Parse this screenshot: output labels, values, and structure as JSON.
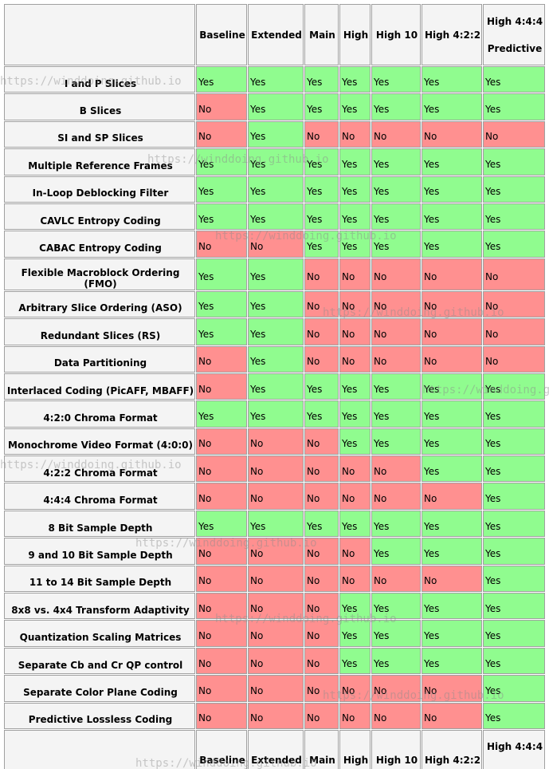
{
  "table": {
    "columns": [
      "Baseline",
      "Extended",
      "Main",
      "High",
      "High 10",
      "High 4:2:2",
      "High 4:4:4 Predictive"
    ],
    "colors": {
      "Yes": "#90fc8f",
      "No": "#ff9090"
    },
    "rows": [
      {
        "feature": "I and P Slices",
        "values": [
          "Yes",
          "Yes",
          "Yes",
          "Yes",
          "Yes",
          "Yes",
          "Yes"
        ]
      },
      {
        "feature": "B Slices",
        "values": [
          "No",
          "Yes",
          "Yes",
          "Yes",
          "Yes",
          "Yes",
          "Yes"
        ]
      },
      {
        "feature": "SI and SP Slices",
        "values": [
          "No",
          "Yes",
          "No",
          "No",
          "No",
          "No",
          "No"
        ]
      },
      {
        "feature": "Multiple Reference Frames",
        "values": [
          "Yes",
          "Yes",
          "Yes",
          "Yes",
          "Yes",
          "Yes",
          "Yes"
        ]
      },
      {
        "feature": "In-Loop Deblocking Filter",
        "values": [
          "Yes",
          "Yes",
          "Yes",
          "Yes",
          "Yes",
          "Yes",
          "Yes"
        ]
      },
      {
        "feature": "CAVLC Entropy Coding",
        "values": [
          "Yes",
          "Yes",
          "Yes",
          "Yes",
          "Yes",
          "Yes",
          "Yes"
        ]
      },
      {
        "feature": "CABAC Entropy Coding",
        "values": [
          "No",
          "No",
          "Yes",
          "Yes",
          "Yes",
          "Yes",
          "Yes"
        ]
      },
      {
        "feature": "Flexible Macroblock Ordering (FMO)",
        "values": [
          "Yes",
          "Yes",
          "No",
          "No",
          "No",
          "No",
          "No"
        ]
      },
      {
        "feature": "Arbitrary Slice Ordering (ASO)",
        "values": [
          "Yes",
          "Yes",
          "No",
          "No",
          "No",
          "No",
          "No"
        ]
      },
      {
        "feature": "Redundant Slices (RS)",
        "values": [
          "Yes",
          "Yes",
          "No",
          "No",
          "No",
          "No",
          "No"
        ]
      },
      {
        "feature": "Data Partitioning",
        "values": [
          "No",
          "Yes",
          "No",
          "No",
          "No",
          "No",
          "No"
        ]
      },
      {
        "feature": "Interlaced Coding (PicAFF, MBAFF)",
        "values": [
          "No",
          "Yes",
          "Yes",
          "Yes",
          "Yes",
          "Yes",
          "Yes"
        ]
      },
      {
        "feature": "4:2:0 Chroma Format",
        "values": [
          "Yes",
          "Yes",
          "Yes",
          "Yes",
          "Yes",
          "Yes",
          "Yes"
        ]
      },
      {
        "feature": "Monochrome Video Format (4:0:0)",
        "values": [
          "No",
          "No",
          "No",
          "Yes",
          "Yes",
          "Yes",
          "Yes"
        ]
      },
      {
        "feature": "4:2:2 Chroma Format",
        "values": [
          "No",
          "No",
          "No",
          "No",
          "No",
          "Yes",
          "Yes"
        ]
      },
      {
        "feature": "4:4:4 Chroma Format",
        "values": [
          "No",
          "No",
          "No",
          "No",
          "No",
          "No",
          "Yes"
        ]
      },
      {
        "feature": "8 Bit Sample Depth",
        "values": [
          "Yes",
          "Yes",
          "Yes",
          "Yes",
          "Yes",
          "Yes",
          "Yes"
        ]
      },
      {
        "feature": "9 and 10 Bit Sample Depth",
        "values": [
          "No",
          "No",
          "No",
          "No",
          "Yes",
          "Yes",
          "Yes"
        ]
      },
      {
        "feature": "11 to 14 Bit Sample Depth",
        "values": [
          "No",
          "No",
          "No",
          "No",
          "No",
          "No",
          "Yes"
        ]
      },
      {
        "feature": "8x8 vs. 4x4 Transform Adaptivity",
        "values": [
          "No",
          "No",
          "No",
          "Yes",
          "Yes",
          "Yes",
          "Yes"
        ]
      },
      {
        "feature": "Quantization Scaling Matrices",
        "values": [
          "No",
          "No",
          "No",
          "Yes",
          "Yes",
          "Yes",
          "Yes"
        ]
      },
      {
        "feature": "Separate Cb and Cr QP control",
        "values": [
          "No",
          "No",
          "No",
          "Yes",
          "Yes",
          "Yes",
          "Yes"
        ]
      },
      {
        "feature": "Separate Color Plane Coding",
        "values": [
          "No",
          "No",
          "No",
          "No",
          "No",
          "No",
          "Yes"
        ]
      },
      {
        "feature": "Predictive Lossless Coding",
        "values": [
          "No",
          "No",
          "No",
          "No",
          "No",
          "No",
          "Yes"
        ]
      }
    ]
  },
  "watermark": "https://winddoing.github.io"
}
